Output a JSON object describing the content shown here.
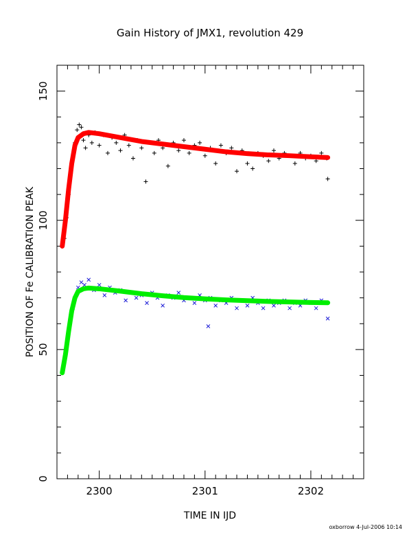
{
  "chart_data": {
    "type": "scatter",
    "title": "Gain History of JMX1, revolution 429",
    "xlabel": "TIME IN IJD",
    "ylabel": "POSITION OF Fe CALIBRATION PEAK",
    "footer": "oxborrow  4-Jul-2006 10:14",
    "xlim": [
      2299.6,
      2302.5
    ],
    "ylim": [
      0,
      160
    ],
    "xticks": [
      2300,
      2301,
      2302
    ],
    "xtick_labels": [
      "2300",
      "2301",
      "2302"
    ],
    "yticks": [
      0,
      50,
      100,
      150
    ],
    "ytick_labels": [
      "0",
      "50",
      "100",
      "150"
    ],
    "grid": false,
    "series": [
      {
        "marker": "plus",
        "color": "#000000",
        "points": [
          [
            2299.67,
            93
          ],
          [
            2299.69,
            101
          ],
          [
            2299.71,
            110
          ],
          [
            2299.73,
            118
          ],
          [
            2299.75,
            124
          ],
          [
            2299.77,
            130
          ],
          [
            2299.79,
            135
          ],
          [
            2299.81,
            137
          ],
          [
            2299.83,
            136
          ],
          [
            2299.85,
            131
          ],
          [
            2299.87,
            128
          ],
          [
            2299.9,
            133
          ],
          [
            2299.93,
            130
          ],
          [
            2299.96,
            134
          ],
          [
            2300.0,
            129
          ],
          [
            2300.04,
            133
          ],
          [
            2300.08,
            126
          ],
          [
            2300.12,
            132
          ],
          [
            2300.16,
            130
          ],
          [
            2300.2,
            127
          ],
          [
            2300.24,
            133
          ],
          [
            2300.28,
            129
          ],
          [
            2300.32,
            124
          ],
          [
            2300.36,
            131
          ],
          [
            2300.4,
            128
          ],
          [
            2300.44,
            115
          ],
          [
            2300.48,
            130
          ],
          [
            2300.52,
            126
          ],
          [
            2300.56,
            131
          ],
          [
            2300.6,
            128
          ],
          [
            2300.65,
            121
          ],
          [
            2300.7,
            130
          ],
          [
            2300.75,
            127
          ],
          [
            2300.8,
            131
          ],
          [
            2300.85,
            126
          ],
          [
            2300.9,
            129
          ],
          [
            2300.95,
            130
          ],
          [
            2301.0,
            125
          ],
          [
            2301.05,
            128
          ],
          [
            2301.1,
            122
          ],
          [
            2301.15,
            129
          ],
          [
            2301.2,
            126
          ],
          [
            2301.25,
            128
          ],
          [
            2301.3,
            119
          ],
          [
            2301.35,
            127
          ],
          [
            2301.4,
            122
          ],
          [
            2301.45,
            120
          ],
          [
            2301.5,
            126
          ],
          [
            2301.55,
            125
          ],
          [
            2301.6,
            123
          ],
          [
            2301.65,
            127
          ],
          [
            2301.7,
            124
          ],
          [
            2301.75,
            126
          ],
          [
            2301.8,
            125
          ],
          [
            2301.85,
            122
          ],
          [
            2301.9,
            126
          ],
          [
            2301.95,
            124
          ],
          [
            2302.0,
            125
          ],
          [
            2302.05,
            123
          ],
          [
            2302.1,
            126
          ],
          [
            2302.15,
            124
          ],
          [
            2302.16,
            116
          ]
        ]
      },
      {
        "marker": "cross",
        "color": "#1c1cd6",
        "points": [
          [
            2299.75,
            66
          ],
          [
            2299.77,
            70
          ],
          [
            2299.8,
            74
          ],
          [
            2299.83,
            76
          ],
          [
            2299.86,
            75
          ],
          [
            2299.9,
            77
          ],
          [
            2299.95,
            73
          ],
          [
            2300.0,
            75
          ],
          [
            2300.05,
            71
          ],
          [
            2300.1,
            74
          ],
          [
            2300.15,
            72
          ],
          [
            2300.2,
            73
          ],
          [
            2300.25,
            69
          ],
          [
            2300.3,
            72
          ],
          [
            2300.35,
            70
          ],
          [
            2300.4,
            71
          ],
          [
            2300.45,
            68
          ],
          [
            2300.5,
            72
          ],
          [
            2300.55,
            70
          ],
          [
            2300.6,
            67
          ],
          [
            2300.65,
            71
          ],
          [
            2300.7,
            70
          ],
          [
            2300.75,
            72
          ],
          [
            2300.8,
            69
          ],
          [
            2300.85,
            70
          ],
          [
            2300.9,
            68
          ],
          [
            2300.95,
            71
          ],
          [
            2301.0,
            69
          ],
          [
            2301.03,
            59
          ],
          [
            2301.05,
            70
          ],
          [
            2301.1,
            67
          ],
          [
            2301.15,
            69
          ],
          [
            2301.2,
            68
          ],
          [
            2301.25,
            70
          ],
          [
            2301.3,
            66
          ],
          [
            2301.35,
            69
          ],
          [
            2301.4,
            67
          ],
          [
            2301.45,
            70
          ],
          [
            2301.5,
            68
          ],
          [
            2301.55,
            66
          ],
          [
            2301.6,
            69
          ],
          [
            2301.65,
            67
          ],
          [
            2301.7,
            68
          ],
          [
            2301.75,
            69
          ],
          [
            2301.8,
            66
          ],
          [
            2301.85,
            68
          ],
          [
            2301.9,
            67
          ],
          [
            2301.95,
            69
          ],
          [
            2302.0,
            68
          ],
          [
            2302.05,
            66
          ],
          [
            2302.1,
            69
          ],
          [
            2302.15,
            68
          ],
          [
            2302.16,
            62
          ]
        ]
      },
      {
        "marker": "fit",
        "color": "#ff0000",
        "points": [
          [
            2299.65,
            90
          ],
          [
            2299.68,
            100
          ],
          [
            2299.71,
            112
          ],
          [
            2299.74,
            122
          ],
          [
            2299.77,
            129
          ],
          [
            2299.8,
            132
          ],
          [
            2299.85,
            133.5
          ],
          [
            2299.9,
            134
          ],
          [
            2300.0,
            133.5
          ],
          [
            2300.2,
            132
          ],
          [
            2300.4,
            130.5
          ],
          [
            2300.6,
            129.5
          ],
          [
            2300.8,
            128.5
          ],
          [
            2301.0,
            127.5
          ],
          [
            2301.2,
            126.5
          ],
          [
            2301.4,
            125.8
          ],
          [
            2301.6,
            125.3
          ],
          [
            2301.8,
            125
          ],
          [
            2302.0,
            124.6
          ],
          [
            2302.16,
            124.3
          ]
        ]
      },
      {
        "marker": "fit",
        "color": "#00ee00",
        "points": [
          [
            2299.65,
            41
          ],
          [
            2299.68,
            48
          ],
          [
            2299.71,
            57
          ],
          [
            2299.74,
            65
          ],
          [
            2299.77,
            70
          ],
          [
            2299.8,
            72.5
          ],
          [
            2299.85,
            73.5
          ],
          [
            2299.9,
            73.8
          ],
          [
            2300.0,
            73.5
          ],
          [
            2300.2,
            72.6
          ],
          [
            2300.4,
            71.6
          ],
          [
            2300.6,
            70.8
          ],
          [
            2300.8,
            70.1
          ],
          [
            2301.0,
            69.6
          ],
          [
            2301.2,
            69.2
          ],
          [
            2301.4,
            68.9
          ],
          [
            2301.6,
            68.6
          ],
          [
            2301.8,
            68.4
          ],
          [
            2302.0,
            68.2
          ],
          [
            2302.16,
            68.1
          ]
        ]
      }
    ]
  }
}
